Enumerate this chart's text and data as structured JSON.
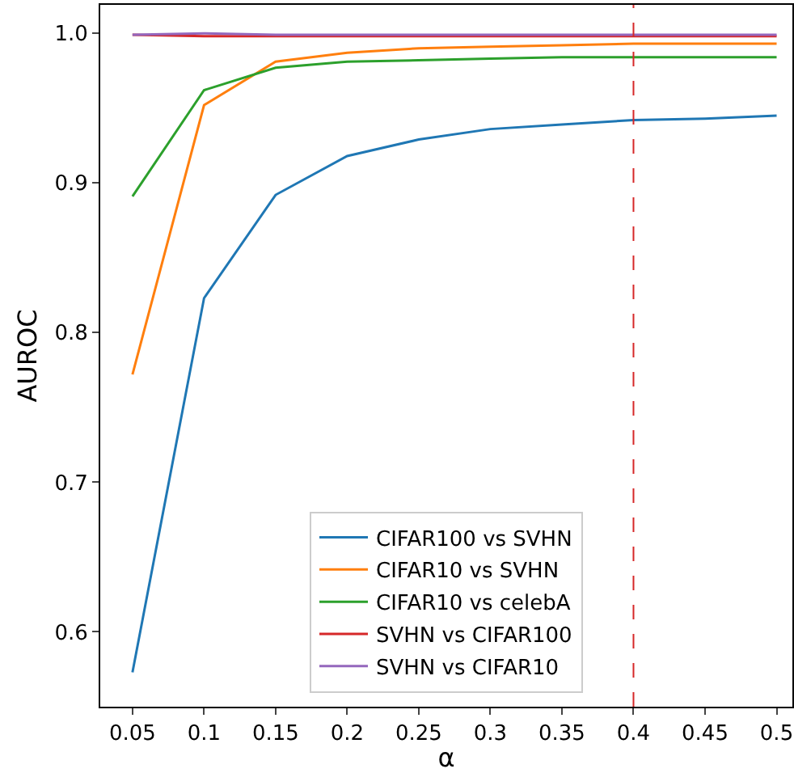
{
  "chart_data": {
    "type": "line",
    "xlabel": "α",
    "ylabel": "AUROC",
    "x": [
      0.05,
      0.1,
      0.15,
      0.2,
      0.25,
      0.3,
      0.35,
      0.4,
      0.45,
      0.5
    ],
    "series": [
      {
        "name": "CIFAR100 vs SVHN",
        "color": "#1f77b4",
        "values": [
          0.573,
          0.823,
          0.892,
          0.918,
          0.929,
          0.936,
          0.939,
          0.942,
          0.943,
          0.945
        ]
      },
      {
        "name": "CIFAR10 vs SVHN",
        "color": "#ff7f0e",
        "values": [
          0.772,
          0.952,
          0.981,
          0.987,
          0.99,
          0.991,
          0.992,
          0.993,
          0.993,
          0.993
        ]
      },
      {
        "name": "CIFAR10 vs celebA",
        "color": "#2ca02c",
        "values": [
          0.891,
          0.962,
          0.977,
          0.981,
          0.982,
          0.983,
          0.984,
          0.984,
          0.984,
          0.984
        ]
      },
      {
        "name": "SVHN vs CIFAR100",
        "color": "#d62728",
        "values": [
          0.999,
          0.998,
          0.998,
          0.998,
          0.998,
          0.998,
          0.998,
          0.998,
          0.998,
          0.998
        ]
      },
      {
        "name": "SVHN vs CIFAR10",
        "color": "#9467bd",
        "values": [
          0.999,
          1.0,
          0.999,
          0.999,
          0.999,
          0.999,
          0.999,
          0.999,
          0.999,
          0.999
        ]
      }
    ],
    "xlim": [
      0.0275,
      0.511
    ],
    "xticks": [
      0.05,
      0.1,
      0.15,
      0.2,
      0.25,
      0.3,
      0.35,
      0.4,
      0.45,
      0.5
    ],
    "ylim": [
      0.55,
      1.019
    ],
    "yticks": [
      {
        "value": 0.6,
        "label": "0.6"
      },
      {
        "value": 0.7,
        "label": "0.7"
      },
      {
        "value": 0.8,
        "label": "0.8"
      },
      {
        "value": 0.9,
        "label": "0.9"
      },
      {
        "value": 1.0,
        "label": "1.0"
      }
    ],
    "ref_lines": [
      {
        "axis": "x",
        "value": 0.4,
        "color": "#d62728",
        "line_style": "dashed"
      }
    ],
    "legend": "bottom",
    "grid": false,
    "marker": "none",
    "line_style": "solid"
  }
}
